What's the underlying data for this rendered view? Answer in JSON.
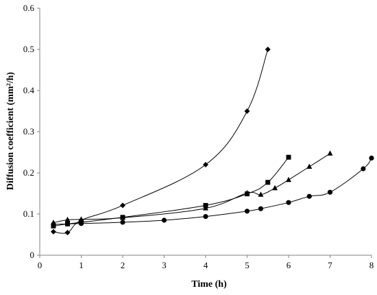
{
  "chart_data": {
    "type": "line",
    "title": "",
    "xlabel": "Time (h)",
    "ylabel": "Diffusion coefficient (mm²/h)",
    "xlim": [
      0,
      8
    ],
    "ylim": [
      0,
      0.6
    ],
    "xticks": [
      "0",
      "1",
      "2",
      "3",
      "4",
      "5",
      "6",
      "7",
      "8"
    ],
    "yticks": [
      "0",
      "0.1",
      "0.2",
      "0.3",
      "0.4",
      "0.5",
      "0.6"
    ],
    "grid": false,
    "legend": "none",
    "line_color": "#000000",
    "series": [
      {
        "marker": "diamond",
        "x": [
          0.33,
          0.67,
          1,
          2,
          4,
          5,
          5.5
        ],
        "y": [
          0.057,
          0.055,
          0.085,
          0.121,
          0.22,
          0.35,
          0.5
        ]
      },
      {
        "marker": "square",
        "x": [
          0.33,
          0.67,
          1,
          2,
          4,
          5,
          5.5,
          6
        ],
        "y": [
          0.071,
          0.076,
          0.08,
          0.092,
          0.121,
          0.149,
          0.177,
          0.238
        ]
      },
      {
        "marker": "triangle",
        "x": [
          0.33,
          0.67,
          1,
          2,
          4,
          5,
          5.33,
          5.67,
          6,
          6.5,
          7
        ],
        "y": [
          0.079,
          0.086,
          0.087,
          0.091,
          0.114,
          0.151,
          0.147,
          0.163,
          0.183,
          0.215,
          0.247
        ]
      },
      {
        "marker": "circle",
        "x": [
          0.33,
          0.67,
          1,
          2,
          3,
          4,
          5,
          5.33,
          6,
          6.5,
          7,
          7.8,
          8
        ],
        "y": [
          0.075,
          0.076,
          0.077,
          0.08,
          0.085,
          0.094,
          0.107,
          0.113,
          0.128,
          0.143,
          0.153,
          0.21,
          0.236
        ]
      }
    ]
  }
}
